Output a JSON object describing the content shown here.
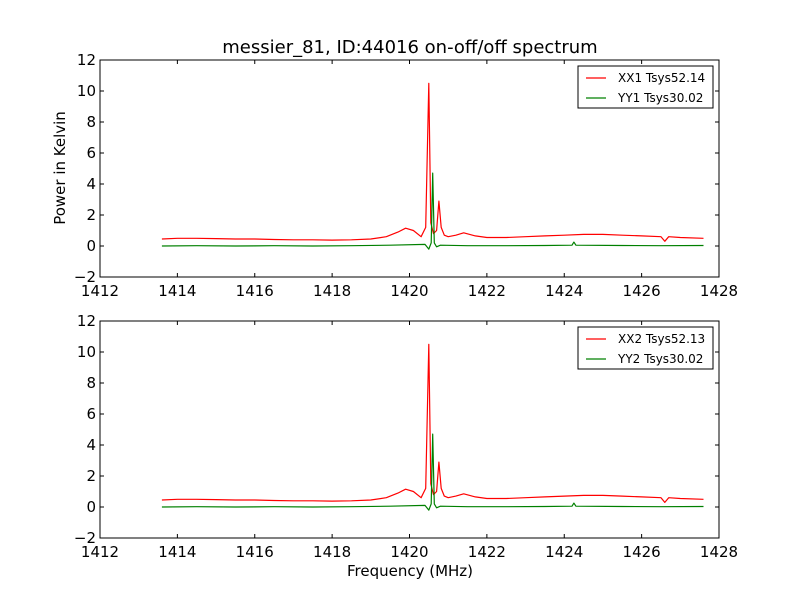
{
  "chart_data": [
    {
      "type": "line",
      "title": "messier_81, ID:44016 on-off/off spectrum",
      "xlabel": "",
      "ylabel": "Power in Kelvin",
      "xlim": [
        1412,
        1428
      ],
      "ylim": [
        -2,
        12
      ],
      "xticks": [
        1412,
        1414,
        1416,
        1418,
        1420,
        1422,
        1424,
        1426,
        1428
      ],
      "yticks": [
        -2,
        0,
        2,
        4,
        6,
        8,
        10,
        12
      ],
      "xtick_labels": [
        "1412",
        "1414",
        "1416",
        "1418",
        "1420",
        "1422",
        "1424",
        "1426",
        "1428"
      ],
      "ytick_labels": [
        "−2",
        "0",
        "2",
        "4",
        "6",
        "8",
        "10",
        "12"
      ],
      "grid": false,
      "legend_position": "top-right",
      "series": [
        {
          "name": "XX1 Tsys52.14",
          "color": "#ff0000",
          "x": [
            1413.6,
            1414.0,
            1414.5,
            1415.0,
            1415.5,
            1416.0,
            1416.5,
            1417.0,
            1417.5,
            1418.0,
            1418.5,
            1419.0,
            1419.4,
            1419.7,
            1419.9,
            1420.1,
            1420.3,
            1420.42,
            1420.5,
            1420.55,
            1420.62,
            1420.7,
            1420.76,
            1420.82,
            1420.9,
            1421.0,
            1421.2,
            1421.4,
            1421.7,
            1422.0,
            1422.5,
            1423.0,
            1423.5,
            1424.0,
            1424.5,
            1425.0,
            1425.5,
            1426.0,
            1426.5,
            1426.6,
            1426.7,
            1427.0,
            1427.6
          ],
          "y": [
            0.45,
            0.5,
            0.5,
            0.48,
            0.45,
            0.45,
            0.42,
            0.4,
            0.4,
            0.38,
            0.4,
            0.45,
            0.6,
            0.9,
            1.15,
            1.0,
            0.6,
            1.2,
            10.5,
            1.5,
            0.8,
            1.0,
            2.9,
            1.2,
            0.7,
            0.6,
            0.7,
            0.85,
            0.65,
            0.55,
            0.55,
            0.6,
            0.65,
            0.7,
            0.75,
            0.75,
            0.7,
            0.65,
            0.6,
            0.3,
            0.6,
            0.55,
            0.5
          ]
        },
        {
          "name": "YY1 Tsys30.02",
          "color": "#008000",
          "x": [
            1413.6,
            1414.5,
            1415.5,
            1416.5,
            1417.5,
            1418.5,
            1419.5,
            1420.4,
            1420.5,
            1420.56,
            1420.6,
            1420.64,
            1420.7,
            1420.8,
            1421.5,
            1422.5,
            1423.5,
            1424.2,
            1424.25,
            1424.3,
            1425.5,
            1426.5,
            1427.6
          ],
          "y": [
            0.0,
            0.02,
            0.0,
            0.02,
            0.0,
            0.02,
            0.05,
            0.1,
            -0.2,
            0.2,
            4.7,
            0.2,
            -0.05,
            0.05,
            0.02,
            0.02,
            0.03,
            0.05,
            0.25,
            0.05,
            0.03,
            0.02,
            0.03
          ]
        }
      ]
    },
    {
      "type": "line",
      "title": "",
      "xlabel": "Frequency (MHz)",
      "ylabel": "",
      "xlim": [
        1412,
        1428
      ],
      "ylim": [
        -2,
        12
      ],
      "xticks": [
        1412,
        1414,
        1416,
        1418,
        1420,
        1422,
        1424,
        1426,
        1428
      ],
      "yticks": [
        -2,
        0,
        2,
        4,
        6,
        8,
        10,
        12
      ],
      "xtick_labels": [
        "1412",
        "1414",
        "1416",
        "1418",
        "1420",
        "1422",
        "1424",
        "1426",
        "1428"
      ],
      "ytick_labels": [
        "−2",
        "0",
        "2",
        "4",
        "6",
        "8",
        "10",
        "12"
      ],
      "grid": false,
      "legend_position": "top-right",
      "series": [
        {
          "name": "XX2 Tsys52.13",
          "color": "#ff0000",
          "x": [
            1413.6,
            1414.0,
            1414.5,
            1415.0,
            1415.5,
            1416.0,
            1416.5,
            1417.0,
            1417.5,
            1418.0,
            1418.5,
            1419.0,
            1419.4,
            1419.7,
            1419.9,
            1420.1,
            1420.3,
            1420.42,
            1420.5,
            1420.55,
            1420.62,
            1420.7,
            1420.76,
            1420.82,
            1420.9,
            1421.0,
            1421.2,
            1421.4,
            1421.7,
            1422.0,
            1422.5,
            1423.0,
            1423.5,
            1424.0,
            1424.5,
            1425.0,
            1425.5,
            1426.0,
            1426.5,
            1426.6,
            1426.7,
            1427.0,
            1427.6
          ],
          "y": [
            0.45,
            0.5,
            0.5,
            0.48,
            0.45,
            0.45,
            0.42,
            0.4,
            0.4,
            0.38,
            0.4,
            0.45,
            0.6,
            0.9,
            1.15,
            1.0,
            0.6,
            1.2,
            10.5,
            1.5,
            0.8,
            1.0,
            2.9,
            1.2,
            0.7,
            0.6,
            0.7,
            0.85,
            0.65,
            0.55,
            0.55,
            0.6,
            0.65,
            0.7,
            0.75,
            0.75,
            0.7,
            0.65,
            0.6,
            0.3,
            0.6,
            0.55,
            0.5
          ]
        },
        {
          "name": "YY2 Tsys30.02",
          "color": "#008000",
          "x": [
            1413.6,
            1414.5,
            1415.5,
            1416.5,
            1417.5,
            1418.5,
            1419.5,
            1420.4,
            1420.5,
            1420.56,
            1420.6,
            1420.64,
            1420.7,
            1420.8,
            1421.5,
            1422.5,
            1423.5,
            1424.2,
            1424.25,
            1424.3,
            1425.5,
            1426.5,
            1427.6
          ],
          "y": [
            0.0,
            0.02,
            0.0,
            0.02,
            0.0,
            0.02,
            0.05,
            0.1,
            -0.2,
            0.2,
            4.7,
            0.2,
            -0.05,
            0.05,
            0.02,
            0.02,
            0.03,
            0.05,
            0.25,
            0.05,
            0.03,
            0.02,
            0.03
          ]
        }
      ]
    }
  ]
}
